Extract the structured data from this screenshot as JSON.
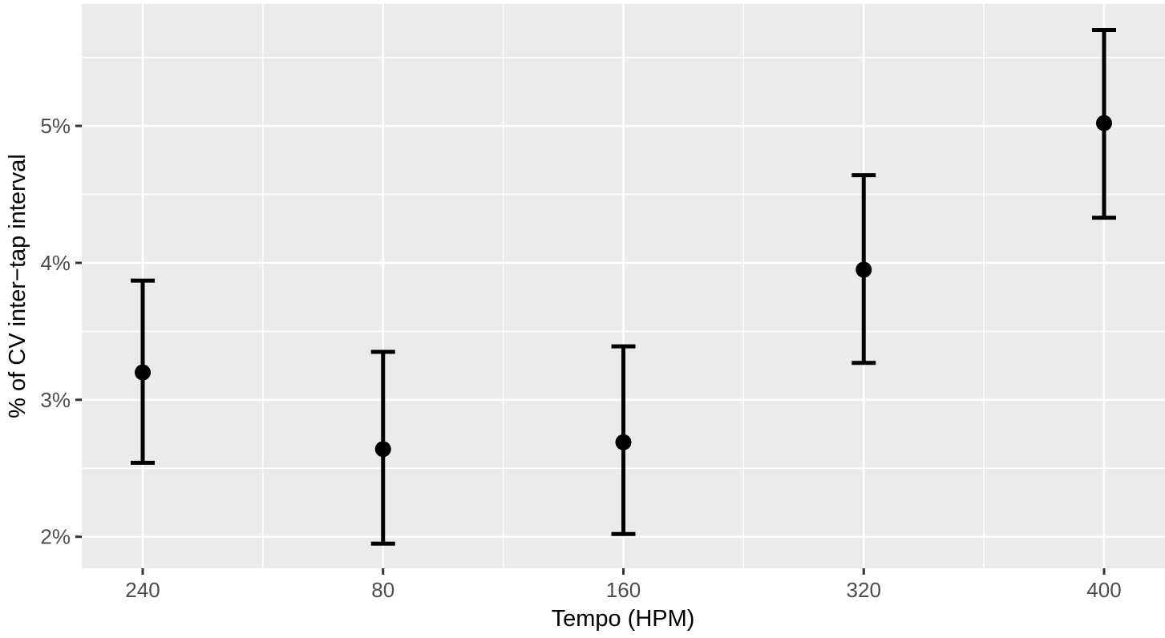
{
  "chart_data": {
    "type": "scatter",
    "subtype": "pointrange-errorbars",
    "title": "",
    "xlabel": "Tempo (HPM)",
    "ylabel": "% of CV inter−tap interval",
    "categories": [
      "240",
      "80",
      "160",
      "320",
      "400"
    ],
    "series": [
      {
        "name": "CV inter-tap interval (%)",
        "means": [
          3.2,
          2.64,
          2.69,
          3.95,
          5.02
        ],
        "ci_lower": [
          2.54,
          1.95,
          2.02,
          3.27,
          4.33
        ],
        "ci_upper": [
          3.87,
          3.35,
          3.39,
          4.64,
          5.7
        ]
      }
    ],
    "ytick_labels": [
      "2%",
      "3%",
      "4%",
      "5%"
    ],
    "ytick_values": [
      2,
      3,
      4,
      5
    ],
    "yminor_values": [
      2.5,
      3.5,
      4.5,
      5.5
    ],
    "ylim": [
      1.77,
      5.89
    ],
    "grid": "white major and minor gridlines on gray panel, minor vertical lines midway between categories",
    "legend": "none",
    "colors": {
      "point": "#000000",
      "error_bar": "#000000",
      "panel_bg": "#EBEBEB",
      "grid_line": "#FFFFFF",
      "tick_label": "#4D4D4D",
      "axis_title": "#000000",
      "tick_mark": "#333333",
      "page_bg": "#FFFFFF"
    }
  }
}
